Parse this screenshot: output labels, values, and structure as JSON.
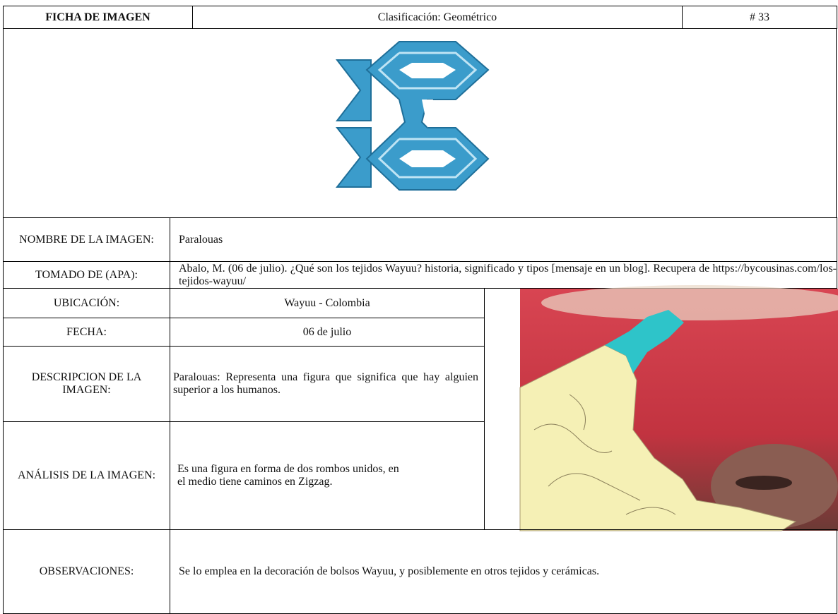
{
  "header": {
    "title": "FICHA DE IMAGEN",
    "classification": "Clasificación: Geométrico",
    "number": "# 33"
  },
  "rows": [
    {
      "label": "NOMBRE DE LA IMAGEN:",
      "value": "Paralouas"
    },
    {
      "label": "TOMADO DE (APA):",
      "value": "Abalo, M. (06 de julio). ¿Qué son los tejidos Wayuu? historia, significado y tipos [mensaje en un blog]. Recupera de https://bycousinas.com/los-tejidos-wayuu/"
    },
    {
      "label": "UBICACIÓN:",
      "value": "Wayuu - Colombia"
    },
    {
      "label": "FECHA:",
      "value": "06 de julio"
    },
    {
      "label": "DESCRIPCION DE LA IMAGEN:",
      "value": "Paralouas: Representa una figura que significa que hay alguien superior a los humanos."
    },
    {
      "label": "ANÁLISIS DE LA IMAGEN:",
      "value": "Es una figura en forma de dos rombos unidos, en el medio tiene caminos en Zigzag."
    },
    {
      "label": "OBSERVACIONES:",
      "value": "Se lo emplea en la decoración de bolsos Wayuu, y posiblemente en otros tejidos y cerámicas."
    }
  ]
}
